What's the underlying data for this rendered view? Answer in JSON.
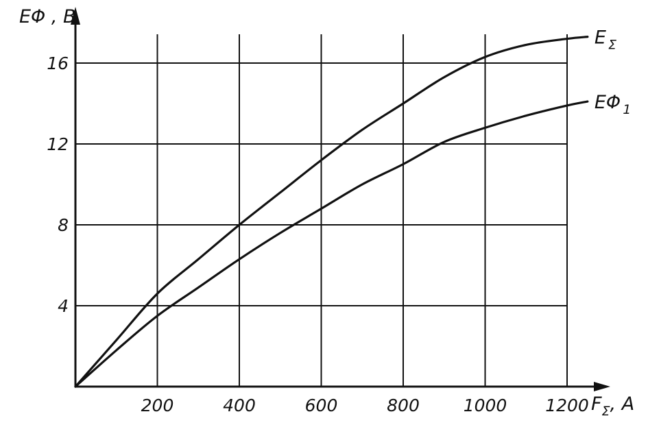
{
  "chart_data": {
    "type": "line",
    "xlabel": {
      "main": "F",
      "sub": "Σ",
      "unit": ", A"
    },
    "ylabel": {
      "main": "EΦ",
      "unit": " , B"
    },
    "xlim": [
      0,
      1250
    ],
    "ylim": [
      0,
      17.5
    ],
    "x_ticks": [
      200,
      400,
      600,
      800,
      1000,
      1200
    ],
    "x_tick_labels": [
      "200",
      "400",
      "600",
      "800",
      "1000",
      "1200"
    ],
    "y_ticks": [
      4,
      8,
      12,
      16
    ],
    "y_tick_labels": [
      "4",
      "8",
      "12",
      "16"
    ],
    "grid": true,
    "series": [
      {
        "name": "E",
        "name_sub": "Σ",
        "x": [
          0,
          100,
          200,
          300,
          400,
          500,
          600,
          700,
          800,
          900,
          1000,
          1100,
          1200,
          1250
        ],
        "y": [
          0,
          2.3,
          4.6,
          6.3,
          8.0,
          9.6,
          11.2,
          12.7,
          14.0,
          15.3,
          16.3,
          16.9,
          17.2,
          17.3
        ]
      },
      {
        "name": "EΦ",
        "name_sub": "1",
        "x": [
          0,
          100,
          200,
          300,
          400,
          500,
          600,
          700,
          800,
          900,
          1000,
          1100,
          1200,
          1250
        ],
        "y": [
          0,
          1.8,
          3.5,
          4.9,
          6.3,
          7.6,
          8.8,
          10.0,
          11.0,
          12.1,
          12.8,
          13.4,
          13.9,
          14.1
        ]
      }
    ]
  }
}
